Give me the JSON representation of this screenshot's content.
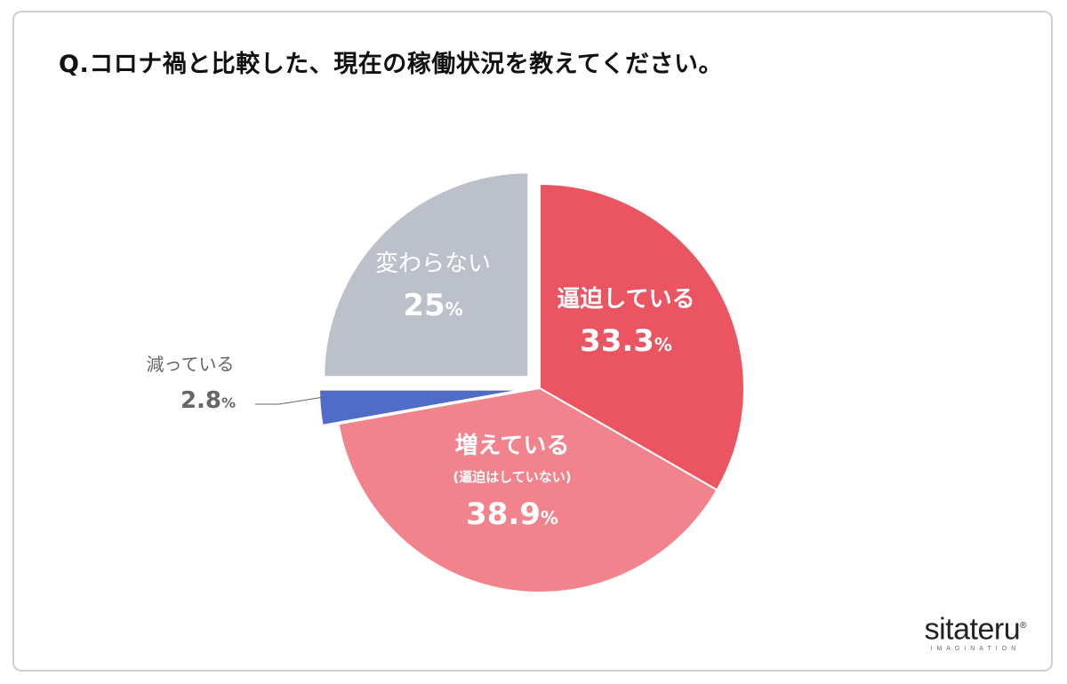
{
  "title": "Q.コロナ禍と比較した、現在の稼働状況を教えてください。",
  "logo": {
    "main": "sitateru",
    "reg": "®",
    "sub": "IMAGINATION"
  },
  "chart_data": {
    "type": "pie",
    "unit": "%",
    "slices": [
      {
        "label": "逼迫している",
        "sublabel": "",
        "value": 33.3,
        "color": "#eb5461",
        "label_color": "#ffffff"
      },
      {
        "label": "増えている",
        "sublabel": "(逼迫はしていない)",
        "value": 38.9,
        "color": "#f2828b",
        "label_color": "#ffffff"
      },
      {
        "label": "減っている",
        "sublabel": "",
        "value": 2.8,
        "color": "#4f6cc7",
        "label_color": "#666666"
      },
      {
        "label": "変わらない",
        "sublabel": "",
        "value": 25,
        "color": "#bcc0ca",
        "label_color": "#ffffff"
      }
    ]
  }
}
